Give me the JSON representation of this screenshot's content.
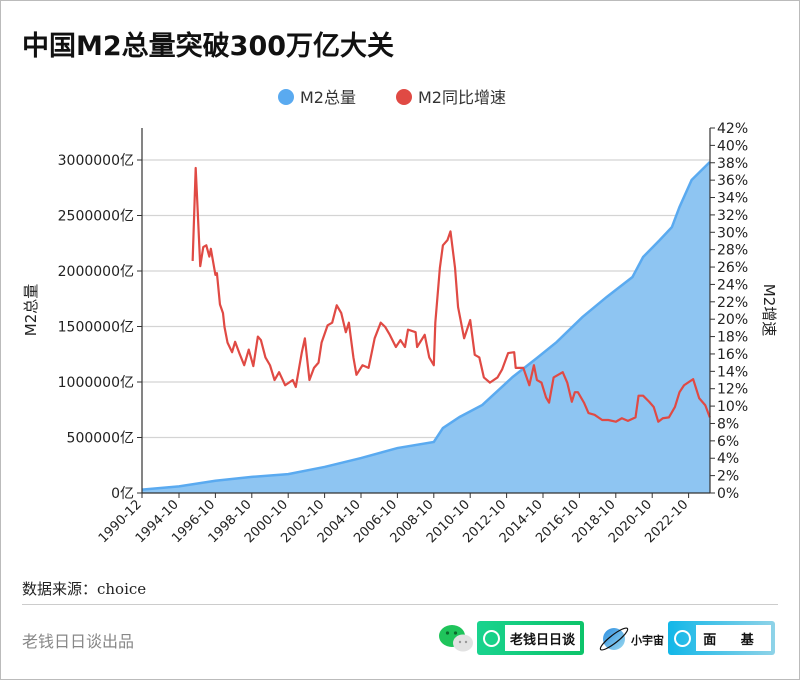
{
  "title": "中国M2总量突破300万亿大关",
  "source": "数据来源：choice",
  "brand": "老钱日日谈出品",
  "footer": {
    "wechat_label": "老钱日日谈",
    "xiaoyuzhou_text": "小宇宙",
    "xiaoyuzhou_label": "面 基"
  },
  "colors": {
    "m2_total": "#5aaaf0",
    "m2_area": "#8ec5f2",
    "m2_growth": "#e04a44"
  },
  "chart_data": {
    "type": "line",
    "title": "中国M2总量突破300万亿大关",
    "legend_position": "top",
    "grid": true,
    "xlabel": "",
    "ylabel_left": "M2总量",
    "ylabel_right": "M2增速",
    "ylim_left": [
      0,
      3000000
    ],
    "ylim_right": [
      0,
      42
    ],
    "x_tick_labels": [
      "1990-12",
      "1994-10",
      "1996-10",
      "1998-10",
      "2000-10",
      "2002-10",
      "2004-10",
      "2006-10",
      "2008-10",
      "2010-10",
      "2012-10",
      "2014-10",
      "2016-10",
      "2018-10",
      "2020-10",
      "2022-10"
    ],
    "y_left_tick_labels": [
      "0亿",
      "500000亿",
      "1000000亿",
      "1500000亿",
      "2000000亿",
      "2500000亿",
      "3000000亿"
    ],
    "y_left_ticks": [
      0,
      500000,
      1000000,
      1500000,
      2000000,
      2500000,
      3000000
    ],
    "y_right_ticks": [
      0,
      2,
      4,
      6,
      8,
      10,
      12,
      14,
      16,
      18,
      20,
      22,
      24,
      26,
      28,
      30,
      32,
      34,
      36,
      38,
      40,
      42
    ],
    "y_right_tick_suffix": "%",
    "series": [
      {
        "name": "M2总量",
        "type": "area",
        "axis": "left",
        "x": [
          "1990-12",
          "1994-10",
          "1996-10",
          "1998-10",
          "2000-10",
          "2002-10",
          "2004-10",
          "2006-10",
          "2008-10",
          "2009-04",
          "2010-03",
          "2011-06",
          "2013-02",
          "2014-06",
          "2015-07",
          "2016-12",
          "2018-04",
          "2019-09",
          "2020-04",
          "2021-03",
          "2021-11",
          "2022-04",
          "2022-12",
          "2023-12"
        ],
        "values": [
          30000,
          60000,
          110000,
          145000,
          170000,
          235000,
          315000,
          405000,
          460000,
          585000,
          685000,
          793000,
          1045000,
          1216000,
          1360000,
          1585000,
          1766000,
          1946000,
          2126000,
          2279000,
          2396000,
          2577000,
          2820000,
          2982000
        ]
      },
      {
        "name": "M2同比增速",
        "type": "line",
        "axis": "right",
        "x": [
          "1995-07",
          "1995-09",
          "1995-10",
          "1995-12",
          "1996-02",
          "1996-04",
          "1996-06",
          "1996-07",
          "1996-10",
          "1996-11",
          "1997-01",
          "1997-03",
          "1997-04",
          "1997-06",
          "1997-09",
          "1997-11",
          "1998-02",
          "1998-05",
          "1998-08",
          "1998-11",
          "1999-02",
          "1999-04",
          "1999-07",
          "1999-10",
          "2000-01",
          "2000-04",
          "2000-08",
          "2001-01",
          "2001-03",
          "2001-05",
          "2001-07",
          "2001-09",
          "2001-12",
          "2002-03",
          "2002-06",
          "2002-08",
          "2002-12",
          "2003-03",
          "2003-06",
          "2003-09",
          "2003-12",
          "2004-02",
          "2004-05",
          "2004-07",
          "2004-11",
          "2005-03",
          "2005-07",
          "2005-11",
          "2006-02",
          "2006-05",
          "2006-09",
          "2006-12",
          "2007-03",
          "2007-05",
          "2007-10",
          "2007-11",
          "2008-04",
          "2008-07",
          "2008-10",
          "2008-11",
          "2009-02",
          "2009-04",
          "2009-07",
          "2009-09",
          "2009-12",
          "2010-02",
          "2010-06",
          "2010-10",
          "2011-01",
          "2011-04",
          "2011-07",
          "2011-11",
          "2012-04",
          "2012-07",
          "2012-11",
          "2013-03",
          "2013-04",
          "2013-09",
          "2014-01",
          "2014-04",
          "2014-06",
          "2014-09",
          "2014-12",
          "2015-02",
          "2015-05",
          "2015-08",
          "2015-11",
          "2016-02",
          "2016-05",
          "2016-07",
          "2016-09",
          "2017-01",
          "2017-04",
          "2017-08",
          "2018-01",
          "2018-05",
          "2018-10",
          "2019-02",
          "2019-06",
          "2019-11",
          "2020-01",
          "2020-04",
          "2020-08",
          "2020-11",
          "2021-02",
          "2021-05",
          "2021-09",
          "2022-01",
          "2022-04",
          "2022-07",
          "2023-01",
          "2023-05",
          "2023-09",
          "2023-12"
        ],
        "values": [
          26.7,
          37.4,
          33.7,
          26.1,
          28.3,
          28.5,
          27.2,
          28.1,
          25.1,
          25.3,
          21.7,
          20.7,
          19.1,
          17.3,
          16.2,
          17.4,
          16.0,
          14.7,
          16.5,
          14.6,
          18.0,
          17.6,
          15.6,
          14.7,
          13.0,
          13.9,
          12.4,
          13.0,
          12.2,
          14.2,
          16.2,
          17.8,
          13.0,
          14.4,
          15.0,
          17.3,
          19.3,
          19.6,
          21.6,
          20.7,
          18.5,
          19.6,
          15.6,
          13.6,
          14.7,
          14.4,
          17.8,
          19.6,
          19.1,
          18.2,
          16.8,
          17.6,
          16.8,
          18.8,
          18.5,
          16.8,
          18.2,
          15.6,
          14.7,
          19.6,
          25.9,
          28.5,
          29.1,
          30.1,
          25.9,
          21.4,
          17.8,
          19.9,
          15.9,
          15.6,
          13.3,
          12.7,
          13.3,
          14.2,
          16.1,
          16.2,
          14.4,
          14.4,
          12.4,
          14.7,
          13.0,
          12.7,
          11.0,
          10.4,
          13.3,
          13.6,
          13.9,
          12.7,
          10.5,
          11.6,
          11.6,
          10.4,
          9.2,
          9.0,
          8.4,
          8.4,
          8.2,
          8.6,
          8.3,
          8.7,
          11.2,
          11.2,
          10.5,
          9.9,
          8.2,
          8.6,
          8.7,
          9.9,
          11.6,
          12.4,
          13.1,
          10.9,
          10.1,
          8.7
        ]
      }
    ]
  }
}
